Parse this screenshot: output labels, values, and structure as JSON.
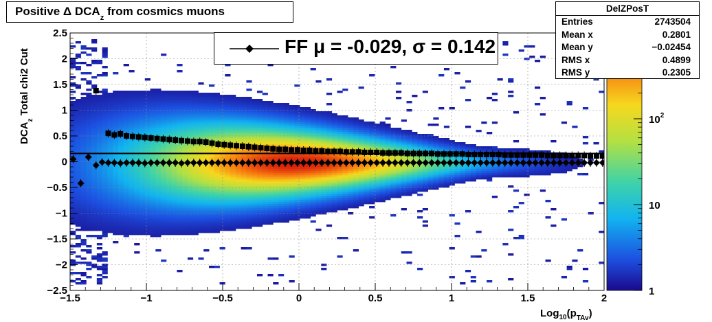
{
  "title": "Positive Δ DCA_z from cosmics muons",
  "title_parts": {
    "a": "Positive Δ DCA",
    "sub": "z",
    "b": "from cosmics muons"
  },
  "stats": {
    "name": "DelZPosT",
    "rows": [
      {
        "key": "Entries",
        "value": "2743504"
      },
      {
        "key": "Mean x",
        "value": "0.2801"
      },
      {
        "key": "Mean y",
        "value": "−0.02454"
      },
      {
        "key": "RMS x",
        "value": "0.4899"
      },
      {
        "key": "RMS y",
        "value": "0.2305"
      }
    ]
  },
  "legend": {
    "entry": "FF μ = -0.029, σ =   0.142"
  },
  "colors": {
    "profile_marker": "#000000",
    "palette": "rainbow"
  },
  "chart_data": {
    "type": "heatmap",
    "title": "Positive Δ DCA_z from cosmics muons",
    "xlabel": "Log10(pTAv)",
    "ylabel": "DCA_z   Total chi2 Cut",
    "xlim": [
      -1.5,
      2
    ],
    "ylim": [
      -2.5,
      2.5
    ],
    "x_ticks": [
      "−1.5",
      "−1",
      "−0.5",
      "0",
      "0.5",
      "1",
      "1.5",
      "2"
    ],
    "y_ticks": [
      "2.5",
      "2",
      "1.5",
      "1",
      "0.5",
      "0",
      "−0.5",
      "−1",
      "−1.5",
      "−2",
      "−2.5"
    ],
    "z_scale": "log",
    "z_range": [
      1,
      1000
    ],
    "z_ticks": [
      "1",
      "10",
      "10^2"
    ],
    "grid": true,
    "series": [
      {
        "name": "spread",
        "marker": "square",
        "x": [
          -1.33,
          -1.25,
          -1.21,
          -1.17,
          -1.13,
          -1.09,
          -1.05,
          -1.01,
          -0.97,
          -0.93,
          -0.89,
          -0.85,
          -0.81,
          -0.77,
          -0.73,
          -0.69,
          -0.65,
          -0.61,
          -0.57,
          -0.53,
          -0.49,
          -0.45,
          -0.41,
          -0.37,
          -0.33,
          -0.29,
          -0.25,
          -0.21,
          -0.17,
          -0.13,
          -0.09,
          -0.05,
          -0.01,
          0.03,
          0.07,
          0.11,
          0.15,
          0.19,
          0.23,
          0.27,
          0.31,
          0.35,
          0.39,
          0.43,
          0.47,
          0.51,
          0.55,
          0.59,
          0.63,
          0.67,
          0.71,
          0.75,
          0.79,
          0.83,
          0.87,
          0.91,
          0.95,
          0.99,
          1.03,
          1.07,
          1.11,
          1.15,
          1.19,
          1.23,
          1.27,
          1.31,
          1.35,
          1.39,
          1.43,
          1.47,
          1.51,
          1.55,
          1.59,
          1.63,
          1.67,
          1.71,
          1.75,
          1.79,
          1.83,
          1.87,
          1.91,
          1.95,
          1.99
        ],
        "y": [
          1.38,
          0.55,
          0.52,
          0.54,
          0.5,
          0.49,
          0.48,
          0.47,
          0.46,
          0.45,
          0.44,
          0.43,
          0.42,
          0.41,
          0.4,
          0.39,
          0.39,
          0.38,
          0.36,
          0.34,
          0.33,
          0.32,
          0.31,
          0.3,
          0.29,
          0.28,
          0.27,
          0.26,
          0.25,
          0.24,
          0.24,
          0.23,
          0.23,
          0.22,
          0.22,
          0.21,
          0.21,
          0.2,
          0.2,
          0.2,
          0.19,
          0.19,
          0.19,
          0.18,
          0.18,
          0.18,
          0.17,
          0.17,
          0.17,
          0.17,
          0.16,
          0.16,
          0.16,
          0.16,
          0.16,
          0.15,
          0.15,
          0.15,
          0.15,
          0.15,
          0.14,
          0.14,
          0.14,
          0.14,
          0.14,
          0.14,
          0.13,
          0.13,
          0.13,
          0.13,
          0.13,
          0.13,
          0.13,
          0.12,
          0.12,
          0.12,
          0.12,
          0.12,
          0.12,
          0.12,
          0.11,
          0.11,
          0.11
        ]
      },
      {
        "name": "mean",
        "marker": "diamond",
        "x": [
          -1.48,
          -1.43,
          -1.38,
          -1.33,
          -1.29,
          -1.25,
          -1.21,
          -1.17,
          -1.13,
          -1.09,
          -1.05,
          -1.01,
          -0.97,
          -0.93,
          -0.89,
          -0.85,
          -0.81,
          -0.77,
          -0.73,
          -0.69,
          -0.65,
          -0.61,
          -0.57,
          -0.53,
          -0.49,
          -0.45,
          -0.41,
          -0.37,
          -0.33,
          -0.29,
          -0.25,
          -0.21,
          -0.17,
          -0.13,
          -0.09,
          -0.05,
          -0.01,
          0.03,
          0.07,
          0.11,
          0.15,
          0.19,
          0.23,
          0.27,
          0.31,
          0.35,
          0.39,
          0.43,
          0.47,
          0.51,
          0.55,
          0.59,
          0.63,
          0.67,
          0.71,
          0.75,
          0.79,
          0.83,
          0.87,
          0.91,
          0.95,
          0.99,
          1.03,
          1.07,
          1.11,
          1.15,
          1.19,
          1.23,
          1.27,
          1.31,
          1.35,
          1.39,
          1.43,
          1.47,
          1.51,
          1.55,
          1.59,
          1.63,
          1.67,
          1.71,
          1.75,
          1.79,
          1.83,
          1.87,
          1.91,
          1.95,
          1.99
        ],
        "y": [
          0.05,
          -0.42,
          0.09,
          -0.07,
          -0.01,
          -0.02,
          -0.02,
          -0.03,
          -0.02,
          -0.02,
          -0.02,
          -0.03,
          -0.02,
          -0.02,
          -0.02,
          -0.02,
          -0.02,
          -0.03,
          -0.02,
          -0.02,
          -0.02,
          -0.02,
          -0.02,
          -0.02,
          -0.02,
          -0.02,
          -0.02,
          -0.02,
          -0.02,
          -0.02,
          -0.02,
          -0.02,
          -0.02,
          -0.02,
          -0.02,
          -0.02,
          -0.02,
          -0.02,
          -0.02,
          -0.02,
          -0.02,
          -0.02,
          -0.02,
          -0.02,
          -0.02,
          -0.02,
          -0.02,
          -0.02,
          -0.02,
          -0.02,
          -0.02,
          -0.02,
          -0.02,
          -0.02,
          -0.02,
          -0.02,
          -0.02,
          -0.02,
          -0.02,
          -0.02,
          -0.02,
          -0.02,
          -0.02,
          -0.02,
          -0.02,
          -0.02,
          -0.02,
          -0.02,
          -0.02,
          -0.02,
          -0.02,
          -0.02,
          -0.02,
          -0.02,
          -0.02,
          -0.02,
          -0.02,
          -0.02,
          -0.02,
          -0.02,
          -0.02,
          -0.02,
          -0.02,
          -0.02,
          -0.02,
          -0.02,
          -0.02
        ]
      }
    ]
  }
}
